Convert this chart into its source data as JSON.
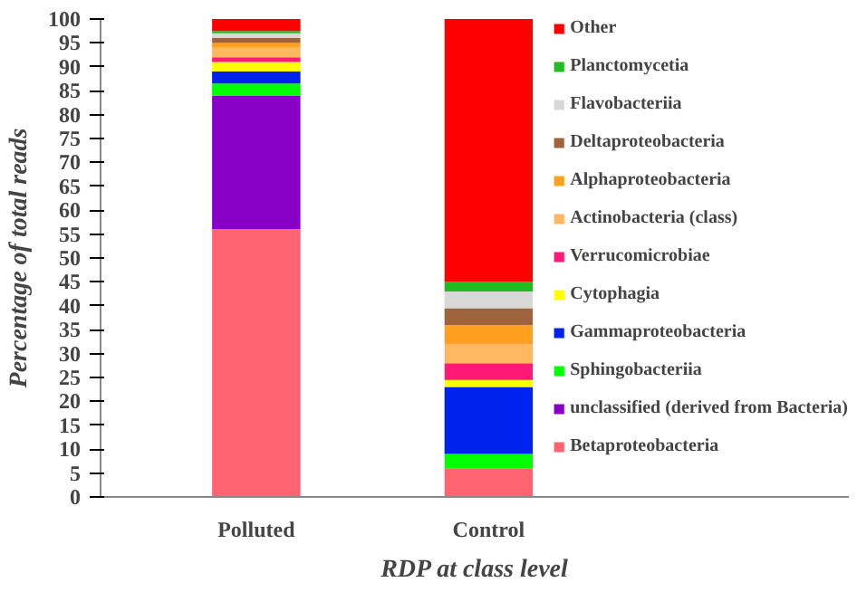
{
  "chart_data": {
    "type": "bar",
    "stacked": true,
    "xlabel": "RDP at class level",
    "ylabel": "Percentage of total reads",
    "categories": [
      "Polluted",
      "Control"
    ],
    "ylim": [
      0,
      100
    ],
    "yticks": [
      0,
      5,
      10,
      15,
      20,
      25,
      30,
      35,
      40,
      45,
      50,
      55,
      60,
      65,
      70,
      75,
      80,
      85,
      90,
      95,
      100
    ],
    "grid": false,
    "legend": "right",
    "series": [
      {
        "name": "Betaproteobacteria",
        "color": "#ff6470",
        "values": [
          56,
          6
        ]
      },
      {
        "name": "unclassified (derived from Bacteria)",
        "color": "#8800c8",
        "values": [
          28,
          0
        ]
      },
      {
        "name": "Sphingobacteriia",
        "color": "#00ff00",
        "values": [
          2.5,
          3
        ]
      },
      {
        "name": "Gammaproteobacteria",
        "color": "#0022ee",
        "values": [
          2.5,
          14
        ]
      },
      {
        "name": "Cytophagia",
        "color": "#ffff00",
        "values": [
          2,
          1.5
        ]
      },
      {
        "name": "Verrucomicrobiae",
        "color": "#ff1a75",
        "values": [
          1,
          3.5
        ]
      },
      {
        "name": "Actinobacteria (class)",
        "color": "#ffb860",
        "values": [
          2,
          4
        ]
      },
      {
        "name": "Alphaproteobacteria",
        "color": "#ffa020",
        "values": [
          1,
          4
        ]
      },
      {
        "name": "Deltaproteobacteria",
        "color": "#a0643c",
        "values": [
          1,
          3.5
        ]
      },
      {
        "name": "Flavobacteriia",
        "color": "#d8d8d8",
        "values": [
          1,
          3.5
        ]
      },
      {
        "name": "Planctomycetia",
        "color": "#22bb22",
        "values": [
          0.5,
          2
        ]
      },
      {
        "name": "Other",
        "color": "#ff0000",
        "values": [
          2.5,
          55
        ]
      }
    ]
  }
}
